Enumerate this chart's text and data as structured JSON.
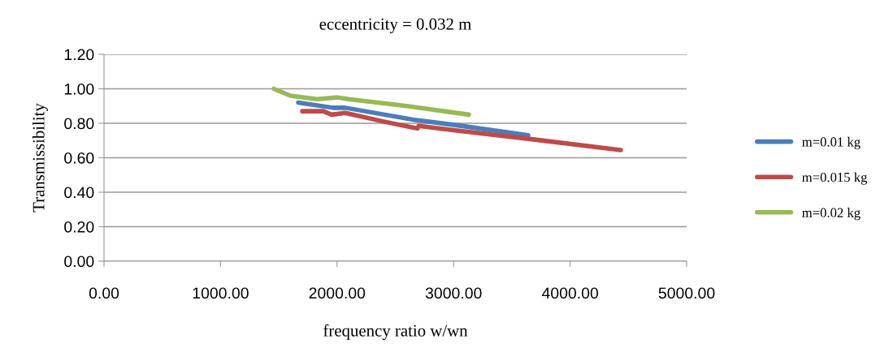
{
  "chart_data": {
    "type": "line",
    "title": "eccentricity = 0.032 m",
    "xlabel": "frequency ratio w/wn",
    "ylabel": "Transmissibility",
    "xlim": [
      0,
      5000
    ],
    "xticks": [
      {
        "value": 0,
        "label": "0.00"
      },
      {
        "value": 1000,
        "label": "1000.00"
      },
      {
        "value": 2000,
        "label": "2000.00"
      },
      {
        "value": 3000,
        "label": "3000.00"
      },
      {
        "value": 4000,
        "label": "4000.00"
      },
      {
        "value": 5000,
        "label": "5000.00"
      }
    ],
    "ylim": [
      0,
      1.2
    ],
    "yticks": [
      {
        "value": 0,
        "label": "0.00"
      },
      {
        "value": 0.2,
        "label": "0.20"
      },
      {
        "value": 0.4,
        "label": "0.40"
      },
      {
        "value": 0.6,
        "label": "0.60"
      },
      {
        "value": 0.8,
        "label": "0.80"
      },
      {
        "value": 1.0,
        "label": "1.00"
      },
      {
        "value": 1.2,
        "label": "1.20"
      }
    ],
    "grid": "y",
    "legend": "right",
    "marker": "none",
    "line_style": "solid",
    "series": [
      {
        "name": "m=0.01 kg",
        "color": "#4a7ebb",
        "x": [
          1667,
          1967,
          2071,
          2664,
          3013,
          3640
        ],
        "values": [
          0.92,
          0.89,
          0.89,
          0.82,
          0.79,
          0.73
        ]
      },
      {
        "name": "m=0.015 kg",
        "color": "#be4b48",
        "x": [
          1702,
          1883,
          1953,
          2071,
          2400,
          2690,
          2700,
          3000,
          3640,
          4435
        ],
        "values": [
          0.87,
          0.87,
          0.85,
          0.86,
          0.81,
          0.77,
          0.785,
          0.76,
          0.71,
          0.645
        ]
      },
      {
        "name": "m=0.02 kg",
        "color": "#98b954",
        "x": [
          1457,
          1600,
          1827,
          2001,
          2100,
          2600,
          3131
        ],
        "values": [
          1.0,
          0.96,
          0.94,
          0.95,
          0.94,
          0.9,
          0.85
        ]
      }
    ]
  }
}
